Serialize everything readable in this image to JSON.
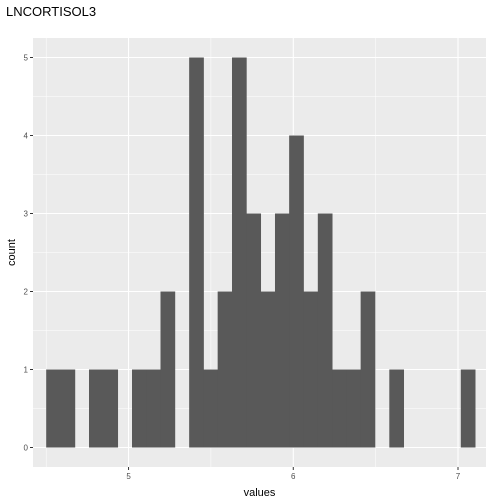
{
  "chart_data": {
    "type": "bar",
    "title": "LNCORTISOL3",
    "xlabel": "values",
    "ylabel": "count",
    "xlim": [
      4.42,
      7.17
    ],
    "ylim": [
      -0.25,
      5.25
    ],
    "x_ticks": [
      5,
      6,
      7
    ],
    "y_ticks": [
      0,
      1,
      2,
      3,
      4,
      5
    ],
    "grid": true,
    "bin_width": 0.0868,
    "bins": [
      {
        "start": 4.5,
        "count": 1
      },
      {
        "start": 4.587,
        "count": 1
      },
      {
        "start": 4.673,
        "count": 0
      },
      {
        "start": 4.76,
        "count": 1
      },
      {
        "start": 4.847,
        "count": 1
      },
      {
        "start": 4.934,
        "count": 0
      },
      {
        "start": 5.021,
        "count": 1
      },
      {
        "start": 5.107,
        "count": 1
      },
      {
        "start": 5.194,
        "count": 2
      },
      {
        "start": 5.281,
        "count": 0
      },
      {
        "start": 5.368,
        "count": 5
      },
      {
        "start": 5.455,
        "count": 1
      },
      {
        "start": 5.541,
        "count": 2
      },
      {
        "start": 5.628,
        "count": 5
      },
      {
        "start": 5.715,
        "count": 3
      },
      {
        "start": 5.802,
        "count": 2
      },
      {
        "start": 5.889,
        "count": 3
      },
      {
        "start": 5.975,
        "count": 4
      },
      {
        "start": 6.062,
        "count": 2
      },
      {
        "start": 6.149,
        "count": 3
      },
      {
        "start": 6.236,
        "count": 1
      },
      {
        "start": 6.323,
        "count": 1
      },
      {
        "start": 6.409,
        "count": 2
      },
      {
        "start": 6.496,
        "count": 0
      },
      {
        "start": 6.583,
        "count": 1
      },
      {
        "start": 6.67,
        "count": 0
      },
      {
        "start": 6.757,
        "count": 0
      },
      {
        "start": 6.843,
        "count": 0
      },
      {
        "start": 6.93,
        "count": 0
      },
      {
        "start": 7.017,
        "count": 1
      }
    ],
    "colors": {
      "panel": "#ebebeb",
      "grid_major": "#ffffff",
      "bar": "#595959"
    }
  }
}
